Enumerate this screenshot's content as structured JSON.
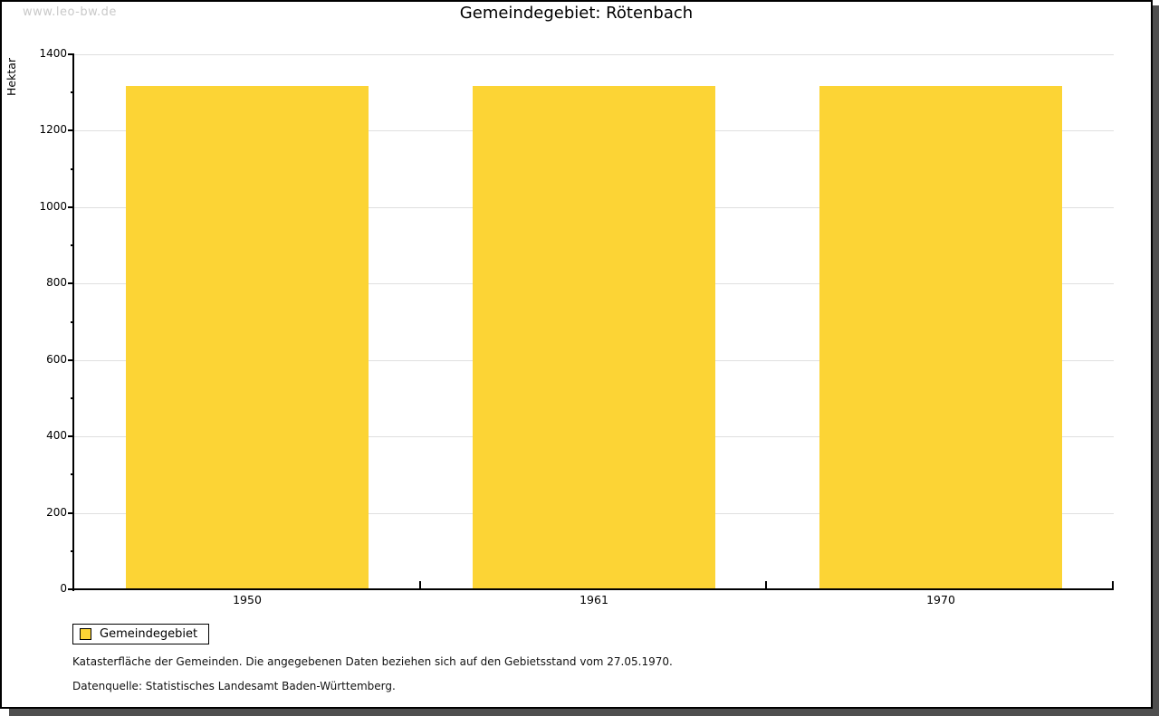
{
  "watermark": "www.leo-bw.de",
  "title": "Gemeindegebiet: Rötenbach",
  "chart_data": {
    "type": "bar",
    "title": "Gemeindegebiet: Rötenbach",
    "categories": [
      "1950",
      "1961",
      "1970"
    ],
    "series": [
      {
        "name": "Gemeindegebiet",
        "values": [
          1315,
          1315,
          1315
        ]
      }
    ],
    "xlabel": "",
    "ylabel": "Hektar",
    "ylim": [
      0,
      1400
    ],
    "ytick_step": 200,
    "yminor_step": 100,
    "grid": "horizontal-major",
    "legend_position": "bottom-left",
    "bar_color": "#FCD435",
    "grid_color": "#DFDFDF"
  },
  "legend": {
    "items": [
      {
        "label": "Gemeindegebiet",
        "color": "#FCD435"
      }
    ]
  },
  "footnotes": {
    "line1": "Katasterfläche der Gemeinden. Die angegebenen Daten beziehen sich auf den Gebietsstand vom 27.05.1970.",
    "line2": "Datenquelle: Statistisches Landesamt Baden-Württemberg."
  }
}
